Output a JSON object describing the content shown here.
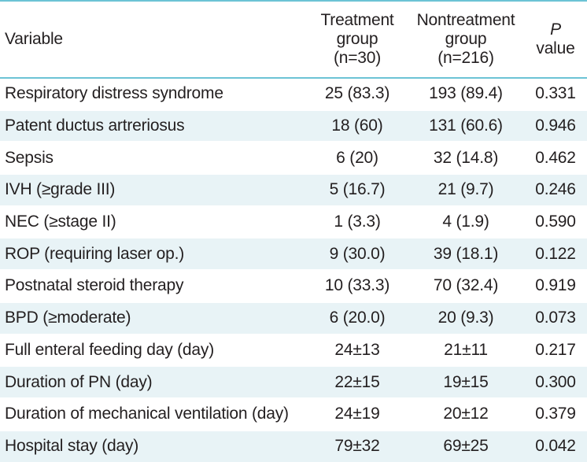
{
  "table": {
    "headers": {
      "variable": "Variable",
      "treatment": [
        "Treatment",
        "group",
        "(n=30)"
      ],
      "nontreatment": [
        "Nontreatment",
        "group",
        "(n=216)"
      ],
      "pvalue": [
        "P",
        "value"
      ]
    },
    "rows": [
      {
        "variable": "Respiratory distress syndrome",
        "treatment": "25 (83.3)",
        "nontreatment": "193 (89.4)",
        "p": "0.331"
      },
      {
        "variable": "Patent ductus artreriosus",
        "treatment": "18 (60)",
        "nontreatment": "131 (60.6)",
        "p": "0.946"
      },
      {
        "variable": "Sepsis",
        "treatment": "6 (20)",
        "nontreatment": "32 (14.8)",
        "p": "0.462"
      },
      {
        "variable": "IVH (≥grade III)",
        "treatment": "5 (16.7)",
        "nontreatment": "21 (9.7)",
        "p": "0.246"
      },
      {
        "variable": "NEC (≥stage II)",
        "treatment": "1 (3.3)",
        "nontreatment": "4 (1.9)",
        "p": "0.590"
      },
      {
        "variable": "ROP (requiring laser op.)",
        "treatment": "9 (30.0)",
        "nontreatment": "39 (18.1)",
        "p": "0.122"
      },
      {
        "variable": "Postnatal steroid therapy",
        "treatment": "10 (33.3)",
        "nontreatment": "70 (32.4)",
        "p": "0.919"
      },
      {
        "variable": "BPD (≥moderate)",
        "treatment": "6 (20.0)",
        "nontreatment": "20 (9.3)",
        "p": "0.073"
      },
      {
        "variable": "Full enteral feeding day (day)",
        "treatment": "24±13",
        "nontreatment": "21±11",
        "p": "0.217"
      },
      {
        "variable": "Duration of PN (day)",
        "treatment": "22±15",
        "nontreatment": "19±15",
        "p": "0.300"
      },
      {
        "variable": "Duration of mechanical ventilation (day)",
        "treatment": "24±19",
        "nontreatment": "20±12",
        "p": "0.379"
      },
      {
        "variable": "Hospital stay (day)",
        "treatment": "79±32",
        "nontreatment": "69±25",
        "p": "0.042"
      }
    ]
  },
  "colors": {
    "rule": "#6cc3d5",
    "stripe": "#e8f3f6",
    "text": "#231f20"
  }
}
